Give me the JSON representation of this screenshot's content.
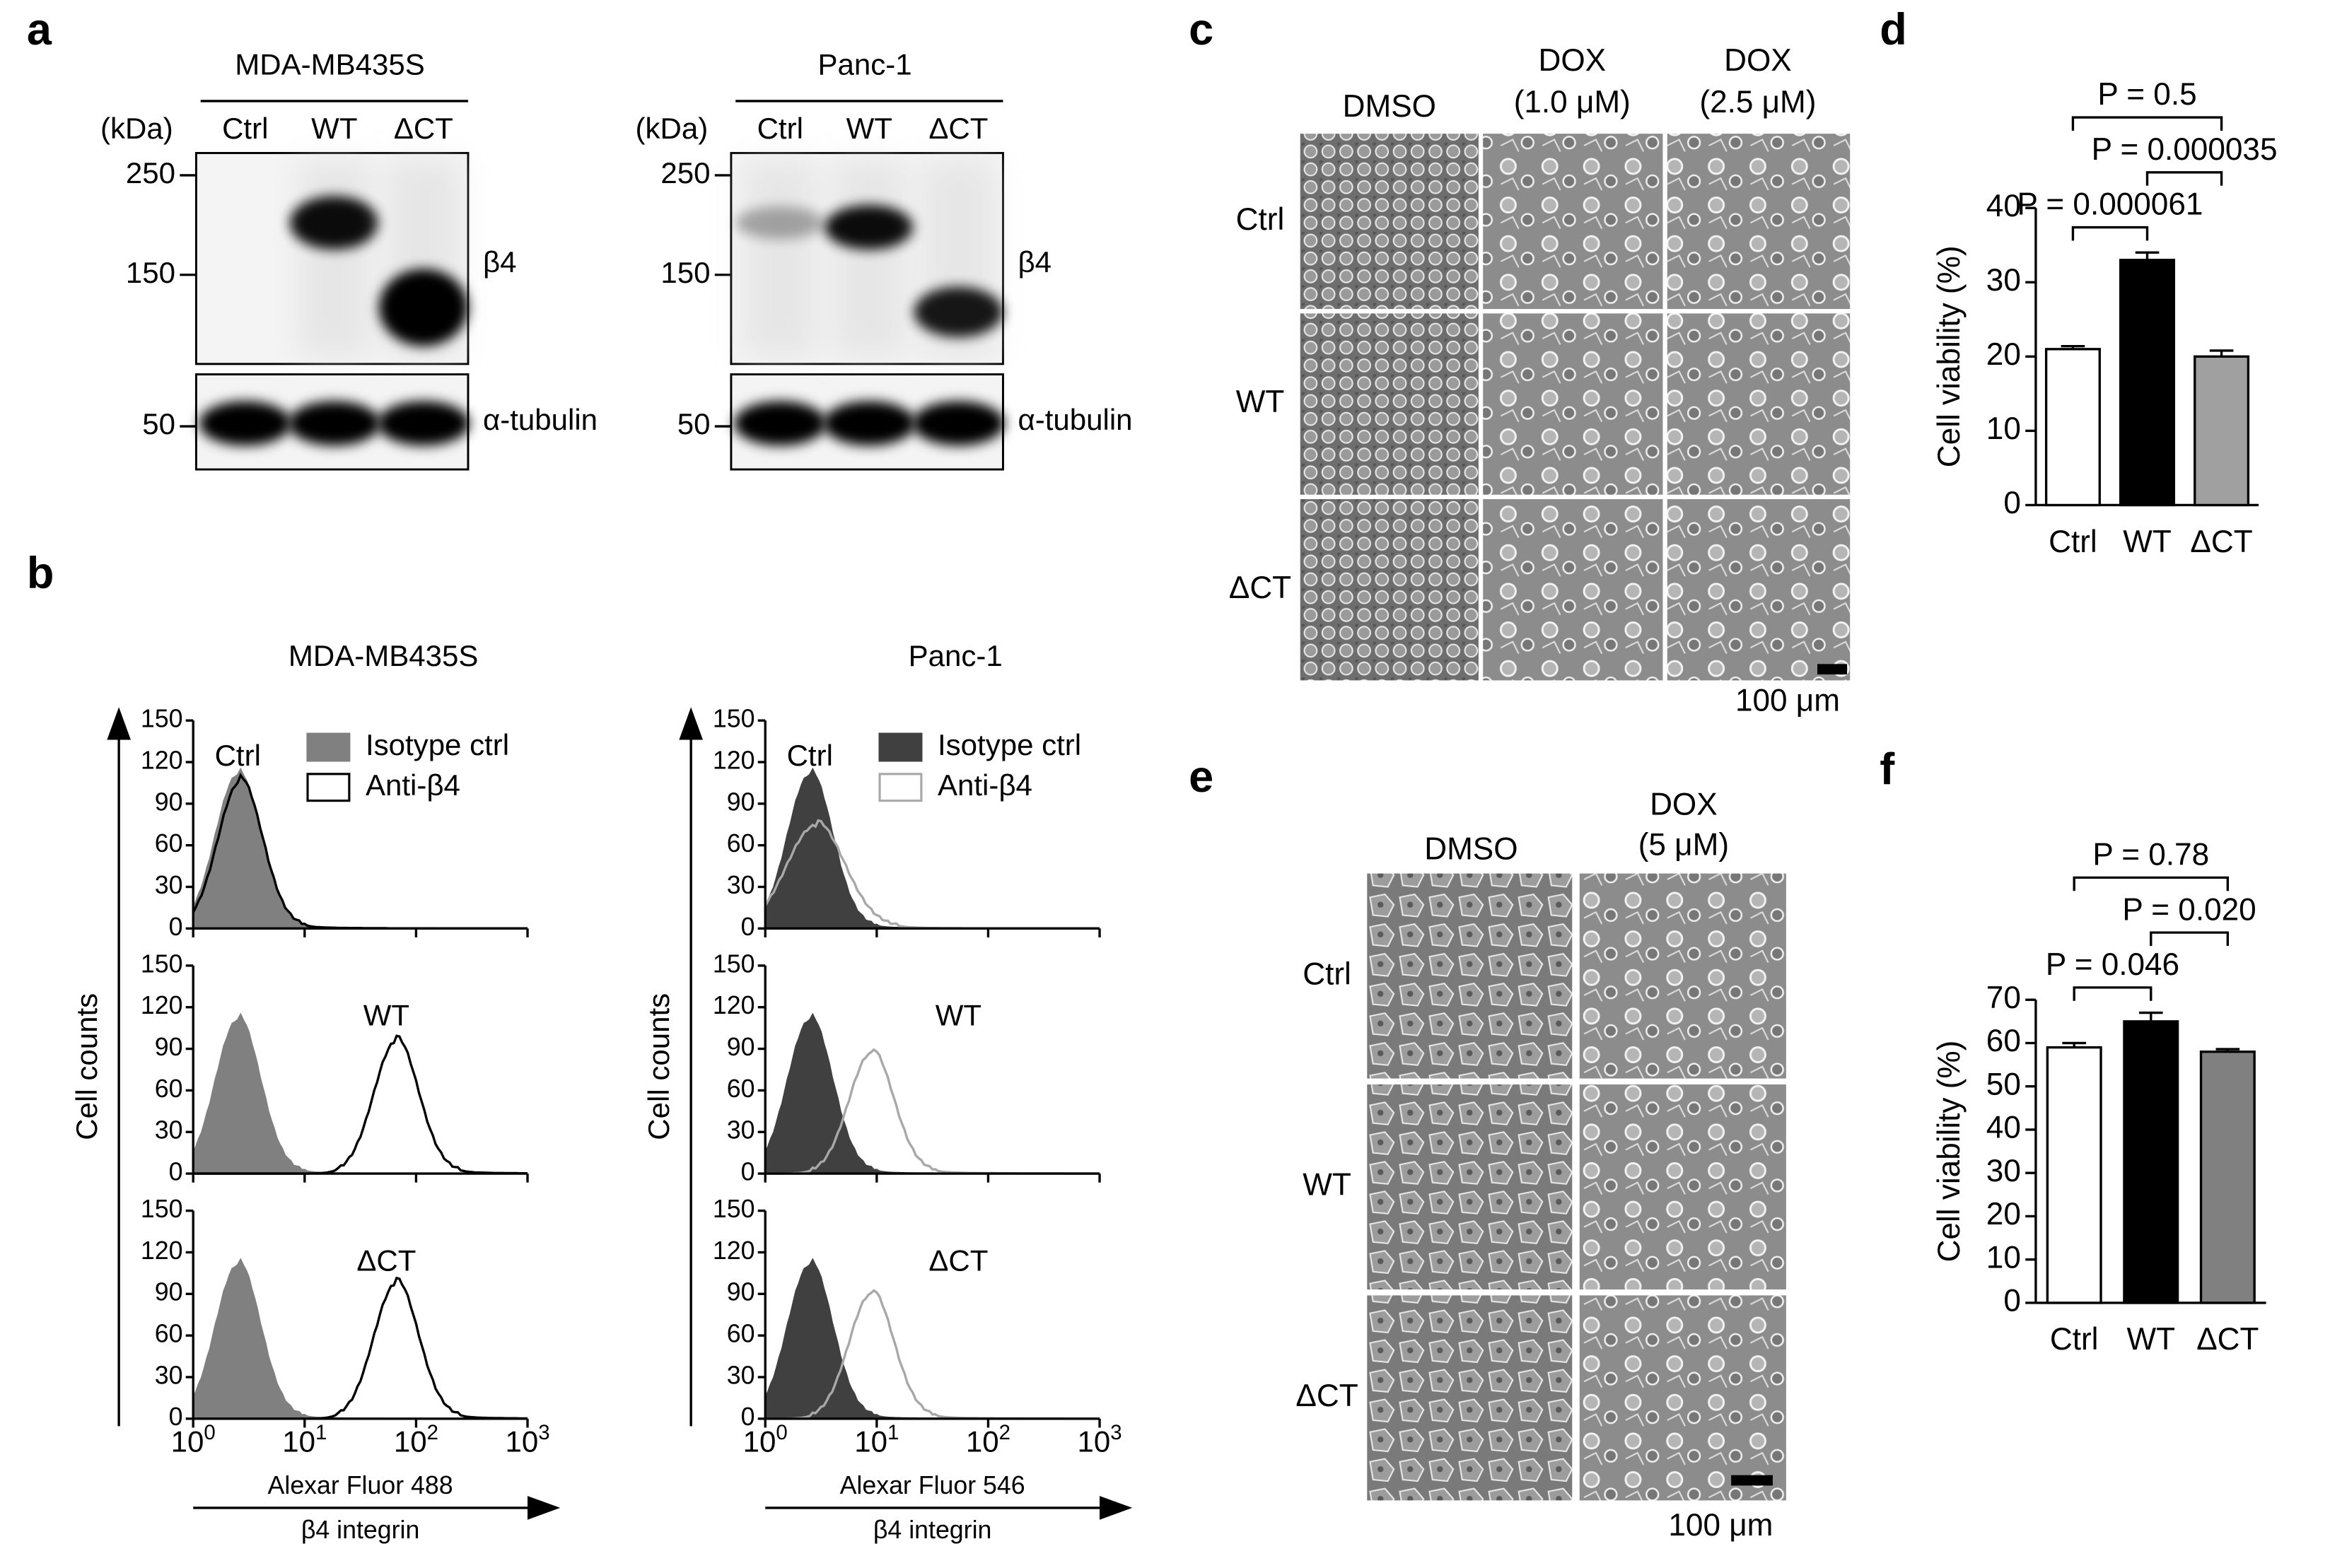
{
  "panel_labels": [
    "a",
    "b",
    "c",
    "d",
    "e",
    "f"
  ],
  "blots": [
    {
      "title": "MDA-MB435S",
      "unit": "(kDa)",
      "lanes": [
        "Ctrl",
        "WT",
        "ΔCT"
      ],
      "markers": [
        "250",
        "150",
        "50"
      ],
      "bands": [
        "β4",
        "α-tubulin"
      ]
    },
    {
      "title": "Panc-1",
      "unit": "(kDa)",
      "lanes": [
        "Ctrl",
        "WT",
        "ΔCT"
      ],
      "markers": [
        "250",
        "150",
        "50"
      ],
      "bands": [
        "β4",
        "α-tubulin"
      ]
    }
  ],
  "flow": {
    "x_tick_base": "10",
    "x_tick_exponents": [
      0,
      1,
      2,
      3
    ],
    "yticks": [
      0,
      30,
      60,
      90,
      120,
      150
    ],
    "y_label": "Cell counts",
    "panels": [
      {
        "title": "MDA-MB435S",
        "legend": [
          "Isotype ctrl",
          "Anti-β4"
        ],
        "colors": [
          "#808080",
          "#000000"
        ],
        "rows": [
          "Ctrl",
          "WT",
          "ΔCT"
        ],
        "x_label": "Alexar Fluor 488",
        "x_label2": "β4 integrin"
      },
      {
        "title": "Panc-1",
        "legend": [
          "Isotype ctrl",
          "Anti-β4"
        ],
        "colors": [
          "#404040",
          "#a8a8a8"
        ],
        "rows": [
          "Ctrl",
          "WT",
          "ΔCT"
        ],
        "x_label": "Alexar Fluor 546",
        "x_label2": "β4 integrin"
      }
    ]
  },
  "micrographs": [
    {
      "columns": [
        [
          "DMSO"
        ],
        [
          "DOX",
          "(1.0 μM)"
        ],
        [
          "DOX",
          "(2.5 μM)"
        ]
      ],
      "rows": [
        "Ctrl",
        "WT",
        "ΔCT"
      ],
      "scale_bar": "100 μm"
    },
    {
      "columns": [
        [
          "DMSO"
        ],
        [
          "DOX",
          "(5 μM)"
        ]
      ],
      "rows": [
        "Ctrl",
        "WT",
        "ΔCT"
      ],
      "scale_bar": "100 μm"
    }
  ],
  "chart_data": [
    {
      "type": "bar",
      "categories": [
        "Ctrl",
        "WT",
        "ΔCT"
      ],
      "values": [
        21,
        33,
        20
      ],
      "errors": [
        0.4,
        1,
        0.8
      ],
      "colors": [
        "#ffffff",
        "#000000",
        "#a0a0a0"
      ],
      "ylim": [
        0,
        40
      ],
      "yticks": [
        0,
        10,
        20,
        30,
        40
      ],
      "y_label": "Cell viability (%)",
      "comparisons": [
        {
          "pair": [
            0,
            1
          ],
          "label": "P = 0.000061"
        },
        {
          "pair": [
            1,
            2
          ],
          "label": "P = 0.000035"
        },
        {
          "pair": [
            0,
            2
          ],
          "label": "P = 0.5"
        }
      ]
    },
    {
      "type": "bar",
      "categories": [
        "Ctrl",
        "WT",
        "ΔCT"
      ],
      "values": [
        59,
        65,
        58
      ],
      "errors": [
        1,
        2,
        0.6
      ],
      "colors": [
        "#ffffff",
        "#000000",
        "#808080"
      ],
      "ylim": [
        0,
        70
      ],
      "yticks": [
        0,
        10,
        20,
        30,
        40,
        50,
        60,
        70
      ],
      "y_label": "Cell viability (%)",
      "comparisons": [
        {
          "pair": [
            0,
            1
          ],
          "label": "P = 0.046"
        },
        {
          "pair": [
            1,
            2
          ],
          "label": "P = 0.020"
        },
        {
          "pair": [
            0,
            2
          ],
          "label": "P = 0.78"
        }
      ]
    }
  ]
}
